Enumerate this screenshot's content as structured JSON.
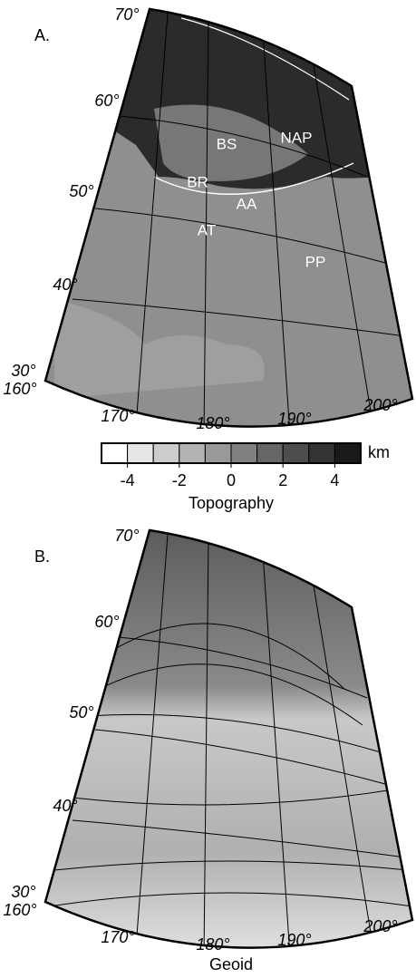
{
  "panels": [
    {
      "label": "A.",
      "lat_labels": [
        "70°",
        "60°",
        "50°",
        "40°",
        "30°"
      ],
      "lon_labels": [
        "160°",
        "170°",
        "180°",
        "190°",
        "200°"
      ],
      "regions": [
        "BS",
        "NAP",
        "BR",
        "AA",
        "AT",
        "PP"
      ]
    },
    {
      "label": "B.",
      "lat_labels": [
        "70°",
        "60°",
        "50°",
        "40°",
        "30°"
      ],
      "lon_labels": [
        "160°",
        "170°",
        "180°",
        "190°",
        "200°"
      ],
      "caption": "Geoid"
    }
  ],
  "colorbar": {
    "range": [
      -5,
      5
    ],
    "ticks": [
      -4,
      -2,
      0,
      2,
      4
    ],
    "unit": "km",
    "label": "Topography",
    "colors": [
      "#ffffff",
      "#e6e6e6",
      "#cccccc",
      "#b3b3b3",
      "#999999",
      "#808080",
      "#666666",
      "#4d4d4d",
      "#333333",
      "#1a1a1a"
    ]
  }
}
